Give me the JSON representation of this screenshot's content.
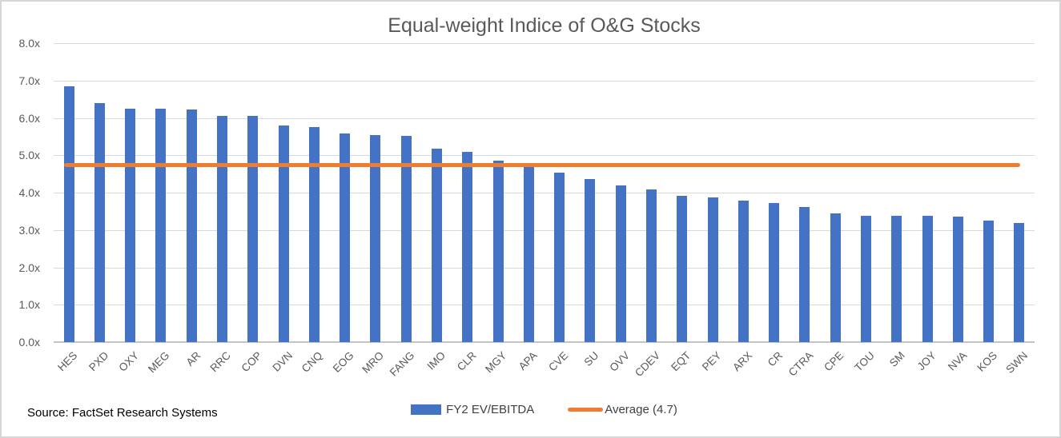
{
  "title": "Equal-weight Indice of O&G Stocks",
  "source": "Source: FactSet Research Systems",
  "legend": {
    "series_label": "FY2 EV/EBITDA",
    "average_label": "Average (4.7)"
  },
  "colors": {
    "bar": "#4472c4",
    "average_line": "#ed7d31",
    "gridline": "#d9d9d9",
    "axis_text": "#595959",
    "title_text": "#595959"
  },
  "chart_data": {
    "type": "bar",
    "title": "Equal-weight Indice of O&G Stocks",
    "series_name": "FY2 EV/EBITDA",
    "categories": [
      "HES",
      "PXD",
      "OXY",
      "MEG",
      "AR",
      "RRC",
      "COP",
      "DVN",
      "CNQ",
      "EOG",
      "MRO",
      "FANG",
      "IMO",
      "CLR",
      "MGY",
      "APA",
      "CVE",
      "SU",
      "OVV",
      "CDEV",
      "EQT",
      "PEY",
      "ARX",
      "CR",
      "CTRA",
      "CPE",
      "TOU",
      "SM",
      "JOY",
      "NVA",
      "KOS",
      "SWN"
    ],
    "values": [
      6.85,
      6.4,
      6.25,
      6.25,
      6.22,
      6.06,
      6.05,
      5.8,
      5.76,
      5.58,
      5.55,
      5.52,
      5.17,
      5.09,
      4.85,
      4.7,
      4.53,
      4.36,
      4.19,
      4.09,
      3.92,
      3.87,
      3.79,
      3.72,
      3.62,
      3.44,
      3.39,
      3.38,
      3.37,
      3.36,
      3.25,
      3.18
    ],
    "average": 4.7,
    "average_label": "Average (4.7)",
    "ylim": [
      0,
      8
    ],
    "ytick_step": 1,
    "ytick_suffix": "x",
    "grid": true,
    "legend_position": "bottom",
    "xlabel": "",
    "ylabel": ""
  }
}
